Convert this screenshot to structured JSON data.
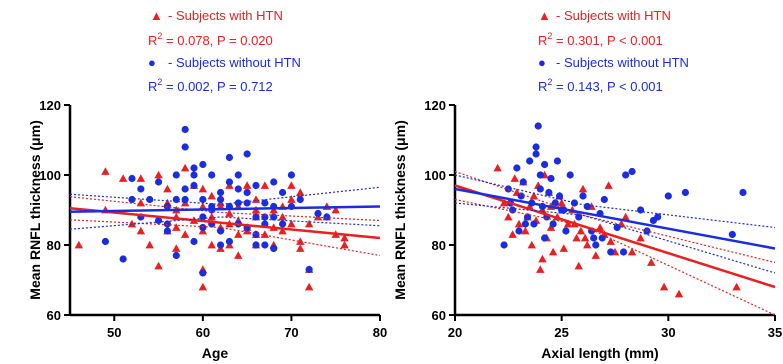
{
  "chart_data": [
    {
      "type": "scatter",
      "xlabel": "Age",
      "ylabel": "Mean RNFL thickness (μm)",
      "xlim": [
        45,
        80
      ],
      "ylim": [
        60,
        120
      ],
      "xticks": [
        "50",
        "60",
        "70",
        "80"
      ],
      "yticks": [
        "60",
        "80",
        "100",
        "120"
      ],
      "colors": {
        "htn": "#e8201f",
        "nohtn": "#1a2ee0"
      },
      "legend": [
        {
          "marker": "▲",
          "label": "- Subjects with HTN",
          "stat_prefix": "R",
          "stat_exp": "2",
          "stat_rest": " = 0.078, P = 0.020"
        },
        {
          "marker": "●",
          "label": "- Subjects without HTN",
          "stat_prefix": "R",
          "stat_exp": "2",
          "stat_rest": " = 0.002, P = 0.712"
        }
      ],
      "series": [
        {
          "name": "Subjects with HTN",
          "marker": "triangle",
          "x": [
            46,
            49,
            49,
            51,
            52,
            53,
            53,
            54,
            55,
            55,
            56,
            56,
            57,
            57,
            57,
            58,
            58,
            59,
            59,
            60,
            60,
            60,
            61,
            61,
            61,
            62,
            62,
            62,
            63,
            63,
            63,
            64,
            64,
            64,
            65,
            65,
            65,
            66,
            66,
            66,
            67,
            67,
            68,
            68,
            69,
            69,
            70,
            70,
            71,
            71,
            72,
            72,
            73,
            74,
            75,
            75,
            76,
            76,
            60,
            70,
            64,
            57,
            66,
            53,
            62,
            68,
            72,
            74,
            58,
            56,
            60,
            63,
            66,
            69,
            71
          ],
          "y": [
            80,
            101,
            90,
            99,
            86,
            99,
            92,
            80,
            100,
            74,
            96,
            84,
            90,
            79,
            88,
            83,
            92,
            87,
            97,
            91,
            73,
            96,
            80,
            88,
            94,
            85,
            92,
            79,
            89,
            80,
            97,
            87,
            83,
            91,
            85,
            97,
            84,
            88,
            80,
            93,
            83,
            97,
            90,
            80,
            84,
            91,
            97,
            86,
            81,
            95,
            73,
            86,
            88,
            88,
            83,
            90,
            82,
            80,
            68,
            93,
            77,
            85,
            90,
            84,
            91,
            85,
            68,
            91,
            102,
            92,
            84,
            86,
            83,
            88,
            79
          ]
        },
        {
          "name": "Subjects without HTN",
          "marker": "circle",
          "x": [
            49,
            51,
            52,
            53,
            53,
            54,
            55,
            55,
            56,
            56,
            57,
            57,
            57,
            58,
            58,
            58,
            59,
            59,
            59,
            60,
            60,
            60,
            60,
            61,
            61,
            61,
            62,
            62,
            62,
            63,
            63,
            63,
            64,
            64,
            64,
            65,
            65,
            65,
            66,
            66,
            66,
            67,
            67,
            67,
            68,
            68,
            68,
            69,
            69,
            70,
            70,
            71,
            72,
            73,
            74,
            58,
            59,
            61,
            63,
            65,
            67,
            52,
            56,
            60,
            62,
            64,
            66,
            68
          ],
          "y": [
            81,
            76,
            99,
            88,
            96,
            93,
            87,
            98,
            91,
            84,
            77,
            93,
            100,
            113,
            108,
            93,
            97,
            81,
            100,
            103,
            93,
            88,
            72,
            91,
            86,
            100,
            84,
            95,
            93,
            98,
            91,
            81,
            86,
            92,
            100,
            106,
            95,
            85,
            88,
            80,
            97,
            92,
            86,
            80,
            98,
            88,
            79,
            95,
            86,
            91,
            100,
            93,
            73,
            89,
            88,
            96,
            102,
            90,
            105,
            92,
            88,
            93,
            86,
            85,
            80,
            96,
            83,
            91
          ]
        }
      ],
      "fits": [
        {
          "series": "Subjects with HTN",
          "x": [
            45,
            80
          ],
          "y": [
            90.5,
            82.0
          ],
          "ci_upper": [
            [
              45,
              93.8
            ],
            [
              62,
              89.3
            ],
            [
              80,
              87.0
            ]
          ],
          "ci_lower": [
            [
              45,
              87.2
            ],
            [
              62,
              85.0
            ],
            [
              80,
              77.0
            ]
          ]
        },
        {
          "series": "Subjects without HTN",
          "x": [
            45,
            80
          ],
          "y": [
            89.5,
            91.0
          ],
          "ci_upper": [
            [
              45,
              94.5
            ],
            [
              62,
              91.6
            ],
            [
              80,
              96.5
            ]
          ],
          "ci_lower": [
            [
              45,
              84.5
            ],
            [
              62,
              88.0
            ],
            [
              80,
              85.5
            ]
          ]
        }
      ]
    },
    {
      "type": "scatter",
      "xlabel": "Axial length (mm)",
      "ylabel": "Mean RNFL thickness (μm)",
      "xlim": [
        20,
        35
      ],
      "ylim": [
        60,
        120
      ],
      "xticks": [
        "20",
        "25",
        "30",
        "35"
      ],
      "yticks": [
        "60",
        "80",
        "100",
        "120"
      ],
      "colors": {
        "htn": "#e8201f",
        "nohtn": "#1a2ee0"
      },
      "legend": [
        {
          "marker": "▲",
          "label": "- Subjects with HTN",
          "stat_prefix": "R",
          "stat_exp": "2",
          "stat_rest": " = 0.301, P < 0.001"
        },
        {
          "marker": "●",
          "label": "- Subjects without HTN",
          "stat_prefix": "R",
          "stat_exp": "2",
          "stat_rest": " = 0.143, P < 0.001"
        }
      ],
      "series": [
        {
          "name": "Subjects with HTN",
          "marker": "triangle",
          "x": [
            22.0,
            22.3,
            22.5,
            22.7,
            22.9,
            23.0,
            23.2,
            23.3,
            23.5,
            23.6,
            23.8,
            23.9,
            24.0,
            24.1,
            24.2,
            24.3,
            24.4,
            24.5,
            24.6,
            24.8,
            25.0,
            25.1,
            25.3,
            25.5,
            25.7,
            25.9,
            26.0,
            26.2,
            26.4,
            26.6,
            26.8,
            27.0,
            27.2,
            27.5,
            27.8,
            28.0,
            28.3,
            28.7,
            29.2,
            29.8,
            30.5,
            33.2,
            23.7,
            24.9,
            25.6,
            26.1,
            27.3,
            24.1,
            23.4,
            22.8,
            24.5,
            25.8
          ],
          "y": [
            102,
            92,
            88,
            83,
            95,
            86,
            98,
            84,
            91,
            80,
            87,
            97,
            73,
            90,
            100,
            82,
            95,
            85,
            78,
            88,
            92,
            79,
            86,
            90,
            82,
            84,
            96,
            80,
            91,
            77,
            85,
            83,
            97,
            78,
            86,
            88,
            78,
            82,
            75,
            68,
            66,
            68,
            94,
            94,
            86,
            82,
            81,
            76,
            88,
            99,
            91,
            74
          ]
        },
        {
          "name": "Subjects without HTN",
          "marker": "circle",
          "x": [
            22.3,
            22.5,
            22.7,
            22.9,
            23.0,
            23.1,
            23.2,
            23.4,
            23.5,
            23.6,
            23.7,
            23.8,
            23.9,
            24.0,
            24.0,
            24.1,
            24.2,
            24.3,
            24.4,
            24.5,
            24.6,
            24.7,
            24.9,
            25.0,
            25.2,
            25.4,
            25.6,
            25.8,
            26.0,
            26.2,
            26.4,
            26.6,
            26.8,
            27.0,
            27.3,
            27.6,
            28.0,
            28.3,
            28.7,
            29.0,
            29.5,
            30.0,
            30.8,
            33.0,
            33.5,
            23.8,
            24.2,
            25.1,
            26.5,
            27.9,
            29.3,
            22.6,
            23.3,
            24.8,
            26.9
          ],
          "y": [
            80,
            96,
            90,
            102,
            84,
            94,
            98,
            88,
            104,
            92,
            86,
            108,
            114,
            100,
            96,
            91,
            103,
            88,
            95,
            99,
            86,
            92,
            94,
            90,
            84,
            100,
            92,
            88,
            94,
            91,
            84,
            80,
            89,
            93,
            78,
            85,
            100,
            101,
            90,
            84,
            88,
            94,
            95,
            83,
            95,
            106,
            82,
            90,
            82,
            78,
            87,
            92,
            86,
            104,
            82
          ]
        }
      ],
      "fits": [
        {
          "series": "Subjects with HTN",
          "x": [
            20,
            35
          ],
          "y": [
            97,
            68
          ],
          "ci_upper": [
            [
              20,
              101
            ],
            [
              26,
              88.5
            ],
            [
              35,
              75
            ]
          ],
          "ci_lower": [
            [
              20,
              93
            ],
            [
              26,
              85.5
            ],
            [
              35,
              60
            ]
          ]
        },
        {
          "series": "Subjects without HTN",
          "x": [
            20,
            35
          ],
          "y": [
            96,
            79
          ],
          "ci_upper": [
            [
              20,
              100
            ],
            [
              26,
              91.5
            ],
            [
              35,
              85
            ]
          ],
          "ci_lower": [
            [
              20,
              92
            ],
            [
              26,
              88.5
            ],
            [
              35,
              72
            ]
          ]
        }
      ]
    }
  ]
}
